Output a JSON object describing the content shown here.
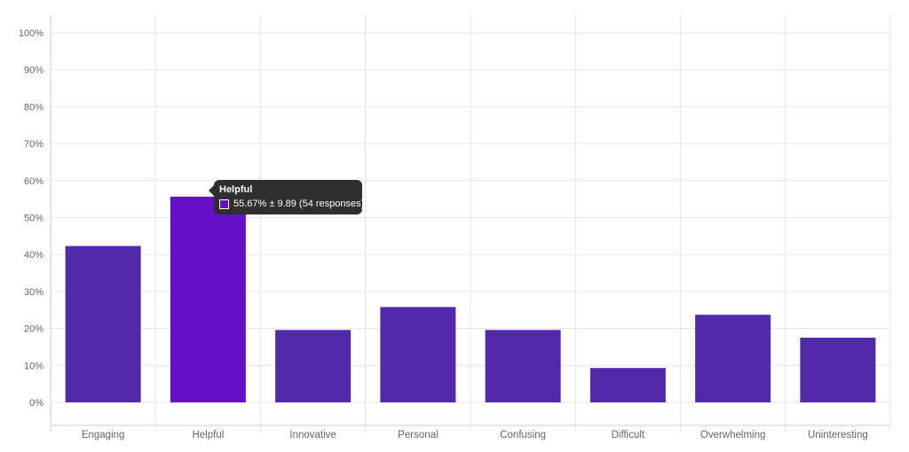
{
  "chart_data": {
    "type": "bar",
    "categories": [
      "Engaging",
      "Helpful",
      "Innovative",
      "Personal",
      "Confusing",
      "Difficult",
      "Overwhelming",
      "Uninteresting"
    ],
    "values": [
      42.3,
      55.67,
      19.6,
      25.8,
      19.6,
      9.3,
      23.7,
      17.5
    ],
    "highlight_index": 1,
    "ylim": [
      0,
      100
    ],
    "yticks": [
      "0%",
      "10%",
      "20%",
      "30%",
      "40%",
      "50%",
      "60%",
      "70%",
      "80%",
      "90%",
      "100%"
    ],
    "grid": true,
    "title": "",
    "xlabel": "",
    "ylabel": "",
    "colors": {
      "bar": "#5229a8",
      "bar_highlight": "#6410c8",
      "grid": "#e6e6e6",
      "axis": "#cccccc"
    }
  },
  "tooltip": {
    "title": "Helpful",
    "text": "55.67% ± 9.89 (54 responses)"
  }
}
